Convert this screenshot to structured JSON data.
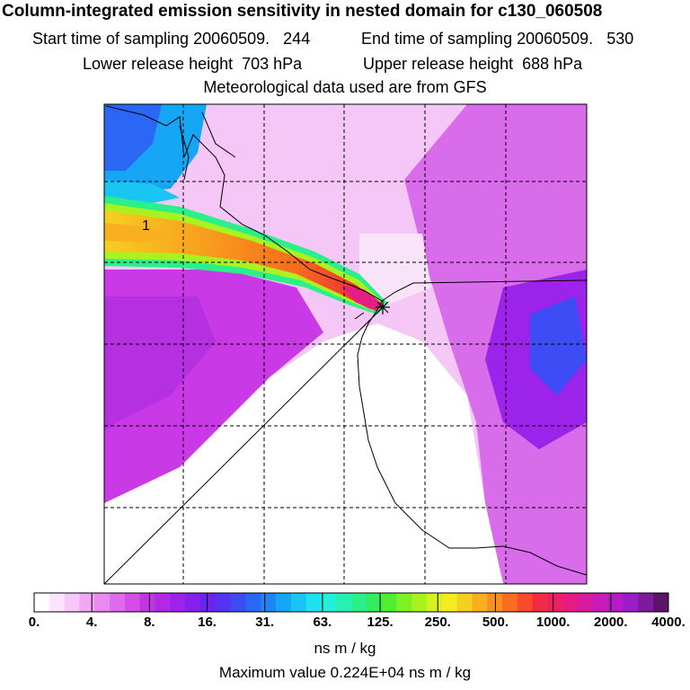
{
  "header": {
    "title": "Column-integrated emission sensitivity in nested domain for c130_060508",
    "start_label": "Start time of sampling 20060509.",
    "start_value": "244",
    "end_label": "End time of sampling 20060509.",
    "end_value": "530",
    "lower_label": "Lower release height",
    "lower_value": "703 hPa",
    "upper_label": "Upper release height",
    "upper_value": "688 hPa",
    "met_line": "Meteorological data used are from GFS"
  },
  "map": {
    "contour_label": "1",
    "release_marker": "star"
  },
  "colorbar": {
    "ticks": [
      "0.",
      "4.",
      "8.",
      "16.",
      "31.",
      "63.",
      "125.",
      "250.",
      "500.",
      "1000.",
      "2000.",
      "4000."
    ],
    "colors": [
      "#ffffff",
      "#fde3fd",
      "#f8c7f9",
      "#f1a7f4",
      "#e98aef",
      "#de6cea",
      "#d24ee5",
      "#c236e1",
      "#b229e5",
      "#9c23ea",
      "#8520ee",
      "#6c23f0",
      "#5434f2",
      "#3d4cf4",
      "#2a67f5",
      "#1c86f6",
      "#16a6f6",
      "#18c5f3",
      "#1ee0ee",
      "#24efd8",
      "#27f0b3",
      "#2aef8a",
      "#31ee5e",
      "#4fef2f",
      "#7ef122",
      "#aaf21f",
      "#d6f21e",
      "#f4ec1f",
      "#f7cf20",
      "#f8b01f",
      "#f98f1e",
      "#fa6c1f",
      "#f94a2a",
      "#f42a45",
      "#ef1f66",
      "#e61c85",
      "#d91aa0",
      "#c91bb6",
      "#b51cc6",
      "#9c1cc9",
      "#7e1a9c",
      "#5a1468"
    ],
    "units": "ns m / kg",
    "max_value_text": "Maximum value  0.224E+04 ns m / kg"
  },
  "colors": {
    "background_light": "#fbe6fb",
    "grid": "#000000",
    "coast": "#000000"
  }
}
